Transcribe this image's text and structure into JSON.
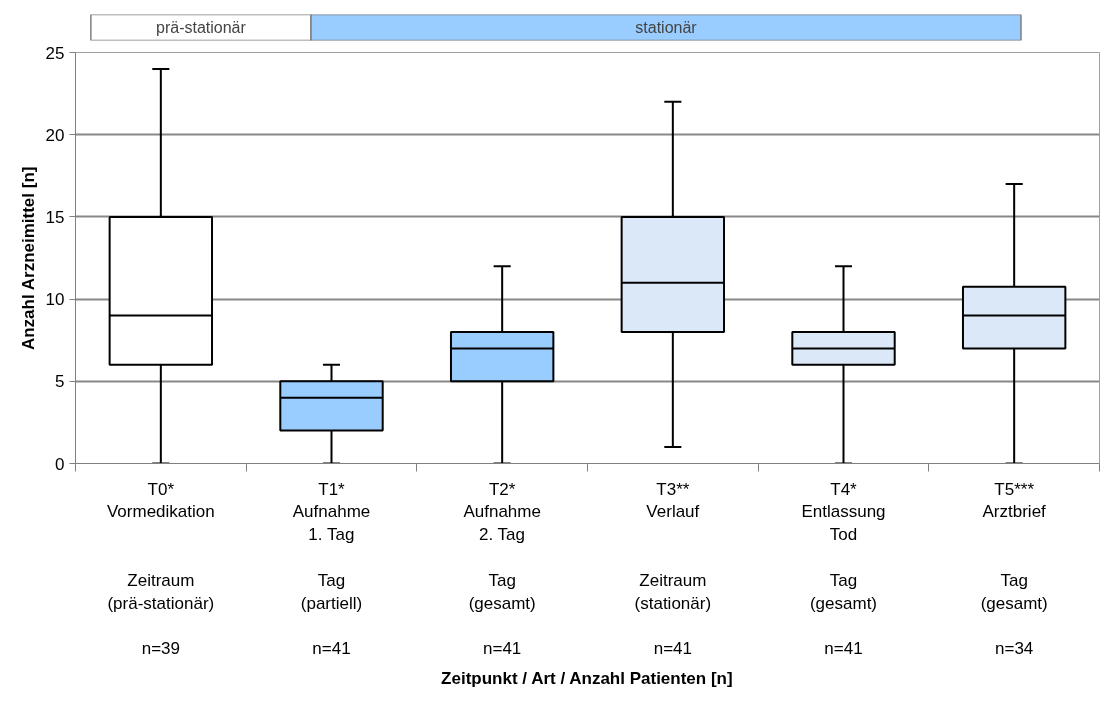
{
  "chart_data": {
    "type": "box",
    "ylabel": "Anzahl Arzneimittel [n]",
    "categories": [
      "T0*\nVormedikation\n\n\nZeitraum\n(prä-stationär)\n\nn=39",
      "T1*\nAufnahme\n1. Tag\n\nTag\n(partiell)\n\nn=41",
      "T2*\nAufnahme\n2. Tag\n\nTag\n(gesamt)\n\nn=41",
      "T3**\nVerlauf\n\n\nZeitraum\n(stationär)\n\nn=41",
      "T4*\nEntlassung\nTod\n\nTag\n(gesamt)\n\nn=41",
      "T5***\nArztbrief\n\n\nTag\n(gesamt)\n\nn=34"
    ],
    "boxes": [
      {
        "low": 0,
        "q1": 6,
        "median": 9,
        "q3": 15,
        "high": 24
      },
      {
        "low": 0,
        "q1": 2,
        "median": 4,
        "q3": 5,
        "high": 6
      },
      {
        "low": 0,
        "q1": 5,
        "median": 7,
        "q3": 8,
        "high": 12
      },
      {
        "low": 1,
        "q1": 8,
        "median": 11,
        "q3": 15,
        "high": 22
      },
      {
        "low": 0,
        "q1": 6,
        "median": 7,
        "q3": 8,
        "high": 12
      },
      {
        "low": 0,
        "q1": 7,
        "median": 9,
        "q3": 10.75,
        "high": 17
      }
    ],
    "colors": [
      "#ffffff",
      "#99ccff",
      "#99ccff",
      "#dae8f8",
      "#dae8f8",
      "#dae8f8"
    ],
    "ylim": [
      0,
      25
    ],
    "yticks": [
      0,
      5,
      10,
      15,
      20,
      25
    ],
    "grid": "y",
    "annotations": [
      "prä-stationär",
      "stationär",
      "Zeitpunkt / Art / Anzahl Patienten [n]"
    ]
  }
}
